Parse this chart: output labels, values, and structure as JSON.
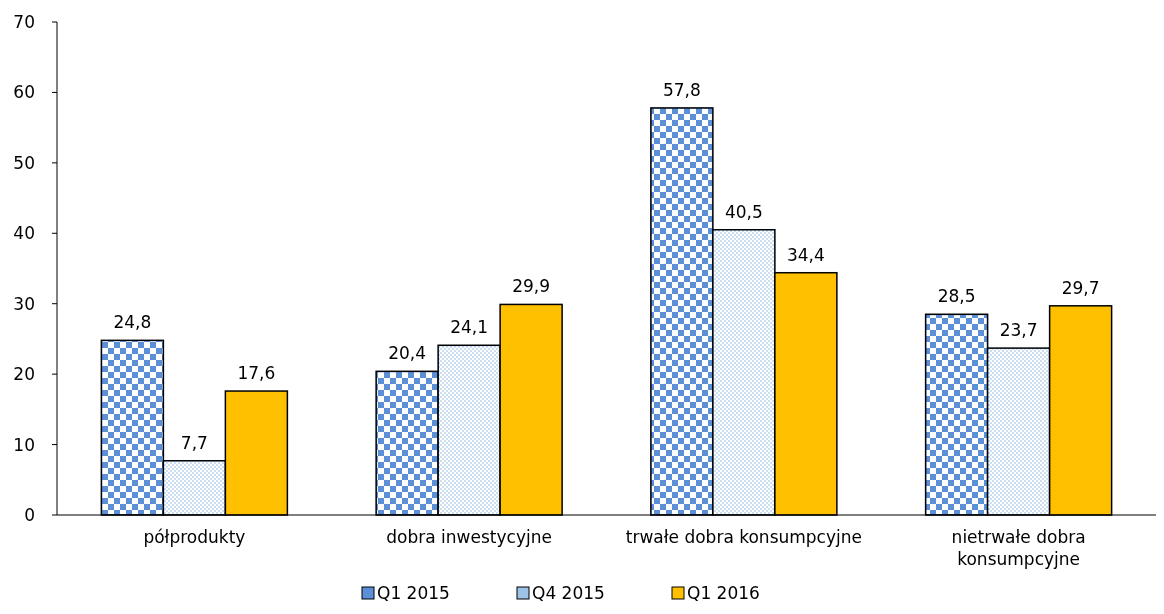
{
  "chart_data": {
    "type": "bar",
    "categories": [
      "półprodukty",
      "dobra inwestycyjne",
      "trwałe dobra konsumpcyjne",
      "nietrwałe dobra konsumpcyjne"
    ],
    "series": [
      {
        "name": "Q1 2015",
        "color": "#5b8fd6",
        "values": [
          24.8,
          20.4,
          57.8,
          28.5
        ],
        "value_labels": [
          "24,8",
          "20,4",
          "57,8",
          "28,5"
        ]
      },
      {
        "name": "Q4 2015",
        "color": "#9dc3e6",
        "values": [
          7.7,
          24.1,
          40.5,
          23.7
        ],
        "value_labels": [
          "7,7",
          "24,1",
          "40,5",
          "23,7"
        ]
      },
      {
        "name": "Q1 2016",
        "color": "#ffc000",
        "values": [
          17.6,
          29.9,
          34.4,
          29.7
        ],
        "value_labels": [
          "17,6",
          "29,9",
          "34,4",
          "29,7"
        ]
      }
    ],
    "ylim": [
      0,
      70
    ],
    "yticks": [
      0,
      10,
      20,
      30,
      40,
      50,
      60,
      70
    ],
    "legend": "bottom",
    "grid": false
  }
}
